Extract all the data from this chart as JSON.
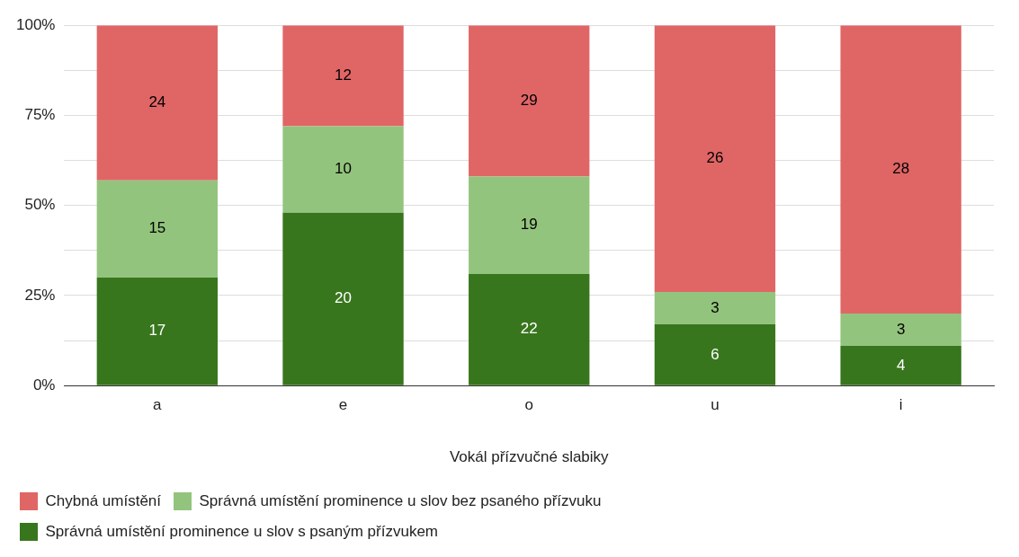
{
  "chart_data": {
    "type": "bar",
    "stacked": true,
    "xlabel": "Vokál přízvučné slabiky",
    "categories": [
      "a",
      "e",
      "o",
      "u",
      "i"
    ],
    "series": [
      {
        "name": "Správná umístění prominence u slov s psaným přízvukem",
        "color": "#38761d",
        "values": [
          30,
          48,
          31,
          17,
          11
        ]
      },
      {
        "name": "Správná umístění prominence u slov bez psaného přízvuku",
        "color": "#93c47d",
        "values": [
          27,
          24,
          27,
          9,
          9
        ]
      },
      {
        "name": "Chybná umístění",
        "color": "#e06666",
        "values": [
          43,
          28,
          42,
          74,
          80
        ]
      }
    ],
    "annotations": [
      "17",
      "15",
      "24",
      "20",
      "10",
      "12",
      "22",
      "19",
      "29",
      "6",
      "3",
      "26",
      "4",
      "3",
      "28"
    ],
    "ylim": [
      0,
      100
    ],
    "yticks": [
      {
        "value": 0,
        "label": "0%"
      },
      {
        "value": 12.5,
        "label": null
      },
      {
        "value": 25,
        "label": "25%"
      },
      {
        "value": 37.5,
        "label": null
      },
      {
        "value": 50,
        "label": "50%"
      },
      {
        "value": 62.5,
        "label": null
      },
      {
        "value": 75,
        "label": "75%"
      },
      {
        "value": 87.5,
        "label": null
      },
      {
        "value": 100,
        "label": "100%"
      }
    ],
    "grid": "y",
    "legend": "bottom"
  }
}
